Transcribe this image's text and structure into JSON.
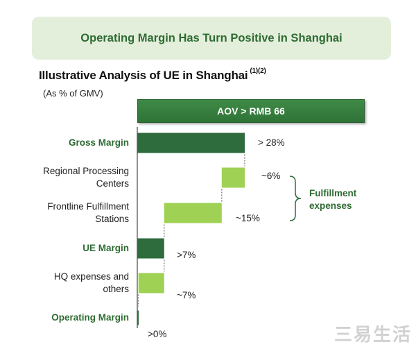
{
  "banner": {
    "title": "Operating Margin Has Turn Positive in Shanghai"
  },
  "subtitle": {
    "text": "Illustrative Analysis of UE in Shanghai",
    "footnote": "(1)(2)"
  },
  "unit_note": "(As % of GMV)",
  "aov_label": "AOV > RMB 66",
  "bracket_label": [
    "Fulfillment",
    "expenses"
  ],
  "watermark": "三易生活",
  "colors": {
    "dark_green": "#2e6b3d",
    "light_green": "#9fd155",
    "text_green": "#2e6b33",
    "connector": "#888888"
  },
  "chart_data": {
    "type": "waterfall",
    "title": "Illustrative Analysis of UE in Shanghai",
    "unit": "% of GMV",
    "x_range": [
      0,
      30
    ],
    "categories": [
      {
        "label": [
          "Gross Margin"
        ],
        "value_label": "> 28%",
        "start": 0,
        "end": 28,
        "kind": "total",
        "highlight": true
      },
      {
        "label": [
          "Regional Processing",
          "Centers"
        ],
        "value_label": "~6%",
        "start": 22,
        "end": 28,
        "kind": "expense",
        "highlight": false
      },
      {
        "label": [
          "Frontline Fulfillment",
          "Stations"
        ],
        "value_label": "~15%",
        "start": 7,
        "end": 22,
        "kind": "expense",
        "highlight": false
      },
      {
        "label": [
          "UE Margin"
        ],
        "value_label": ">7%",
        "start": 0,
        "end": 7,
        "kind": "total",
        "highlight": true
      },
      {
        "label": [
          "HQ expenses and",
          "others"
        ],
        "value_label": "~7%",
        "start": 0.3,
        "end": 7,
        "kind": "expense",
        "highlight": false
      },
      {
        "label": [
          "Operating Margin"
        ],
        "value_label": ">0%",
        "start": 0,
        "end": 0.3,
        "kind": "total",
        "highlight": true
      }
    ]
  }
}
